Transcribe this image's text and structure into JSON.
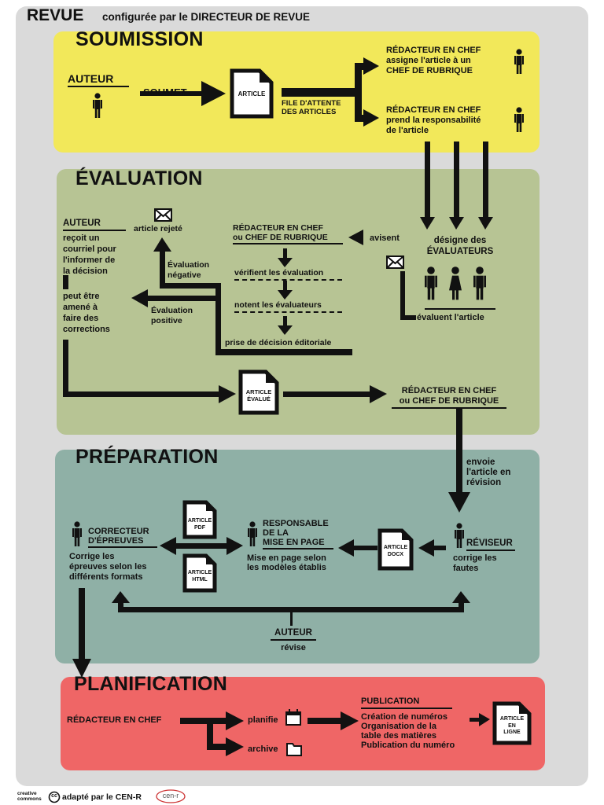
{
  "header": {
    "title": "REVUE",
    "subtitle": "configurée par le DIRECTEUR DE REVUE"
  },
  "colors": {
    "outer": "#dadada",
    "soumission": "#f2e85a",
    "evaluation": "#b7c494",
    "preparation": "#8fb0a6",
    "planification": "#ef6666",
    "ink": "#111111"
  },
  "soumission": {
    "title": "SOUMISSION",
    "author": "AUTEUR",
    "submits": "SOUMET",
    "doc": "ARTICLE",
    "queue": [
      "FILE D'ATTENTE",
      "DES ARTICLES"
    ],
    "assign": [
      "RÉDACTEUR EN CHEF",
      "assigne l'article à un",
      "CHEF DE RUBRIQUE"
    ],
    "takes": [
      "RÉDACTEUR EN CHEF",
      "prend la responsabilité",
      "de l'article"
    ]
  },
  "evaluation": {
    "title": "ÉVALUATION",
    "author": "AUTEUR",
    "author_text": [
      "reçoit un",
      "courriel pour",
      "l'informer de",
      "la décision"
    ],
    "author_text2": [
      "peut être",
      "amené à",
      "faire des",
      "corrections"
    ],
    "rejected": "article rejeté",
    "negative": [
      "Évaluation",
      "négative"
    ],
    "positive": [
      "Évaluation",
      "positive"
    ],
    "editors": [
      "RÉDACTEUR EN CHEF",
      "ou CHEF DE RUBRIQUE"
    ],
    "verify": "vérifient les évaluation",
    "rate": "notent les évaluateurs",
    "decision": "prise de décision éditoriale",
    "notify": "avisent",
    "designate": [
      "désigne des",
      "ÉVALUATEURS"
    ],
    "evaluate": "évaluent l'article",
    "doc": [
      "ARTICLE",
      "ÉVALUÉ"
    ],
    "next_editors": [
      "RÉDACTEUR EN CHEF",
      "ou CHEF DE RUBRIQUE"
    ]
  },
  "preparation": {
    "title": "PRÉPARATION",
    "sends": [
      "envoie",
      "l'article en",
      "révision"
    ],
    "reviser": "RÉVISEUR",
    "reviser_text": [
      "corrige les",
      "fautes"
    ],
    "docx": [
      "ARTICLE",
      "DOCX"
    ],
    "layout": [
      "RESPONSABLE",
      "DE LA",
      "MISE EN PAGE"
    ],
    "layout_text": [
      "Mise en page selon",
      "les modèles établis"
    ],
    "pdf": [
      "ARTICLE",
      "PDF"
    ],
    "html": [
      "ARTICLE",
      "HTML"
    ],
    "proof": [
      "CORRECTEUR",
      "D'ÉPREUVES"
    ],
    "proof_text": [
      "Corrige les",
      "épreuves selon les",
      "différents formats"
    ],
    "author": "AUTEUR",
    "revises": "révise"
  },
  "planification": {
    "title": "PLANIFICATION",
    "editor": "RÉDACTEUR EN CHEF",
    "plans": "planifie",
    "archive": "archive",
    "publication": "PUBLICATION",
    "pub_items": [
      "Création de numéros",
      "Organisation de la",
      "table des matières",
      "Publication du numéro"
    ],
    "online": [
      "ARTICLE",
      "EN",
      "LIGNE"
    ]
  },
  "footer": {
    "cc_top": "creative",
    "cc_bottom": "commons",
    "cc_glyph": "cc",
    "adapted": "adapté par le CEN-R",
    "logo": "cen-r"
  }
}
